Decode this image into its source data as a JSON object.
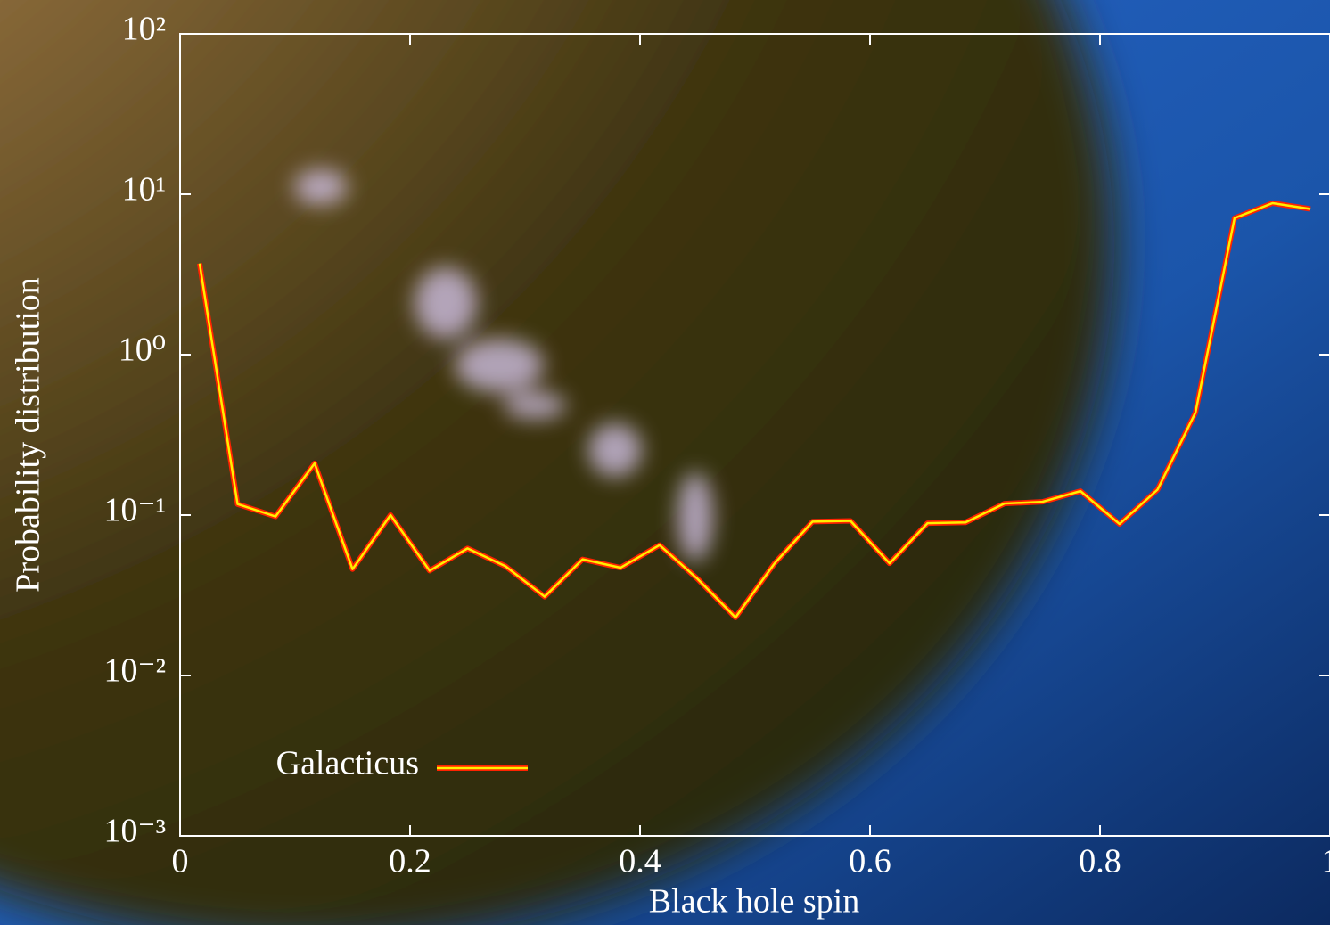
{
  "chart_data": {
    "type": "line",
    "log_y": true,
    "x_label": "Black hole spin",
    "y_label": "Probability distribution",
    "xlim": [
      0,
      1
    ],
    "xticks": [
      0,
      0.2,
      0.4,
      0.6,
      0.8,
      1
    ],
    "ylim": [
      0.001,
      100
    ],
    "yticks": [
      {
        "value": 0.001,
        "label": "10⁻³"
      },
      {
        "value": 0.01,
        "label": "10⁻²"
      },
      {
        "value": 0.1,
        "label": "10⁻¹"
      },
      {
        "value": 1,
        "label": "10⁰"
      },
      {
        "value": 10,
        "label": "10¹"
      },
      {
        "value": 100,
        "label": "10²"
      }
    ],
    "legend": "lower left",
    "x": [
      0.017,
      0.05,
      0.083,
      0.117,
      0.15,
      0.183,
      0.217,
      0.25,
      0.283,
      0.317,
      0.35,
      0.383,
      0.417,
      0.45,
      0.483,
      0.517,
      0.55,
      0.583,
      0.617,
      0.65,
      0.683,
      0.717,
      0.75,
      0.783,
      0.817,
      0.85,
      0.883,
      0.917,
      0.95,
      0.983
    ],
    "series": [
      {
        "name": "Galacticus",
        "color": "#ffee00",
        "edge_color": "#ff2200",
        "values": [
          3.7,
          0.117,
          0.098,
          0.21,
          0.046,
          0.1,
          0.045,
          0.062,
          0.048,
          0.031,
          0.053,
          0.047,
          0.065,
          0.04,
          0.023,
          0.05,
          0.091,
          0.092,
          0.05,
          0.089,
          0.09,
          0.118,
          0.121,
          0.141,
          0.088,
          0.144,
          0.435,
          7.1,
          8.8,
          8.1
        ]
      }
    ]
  }
}
